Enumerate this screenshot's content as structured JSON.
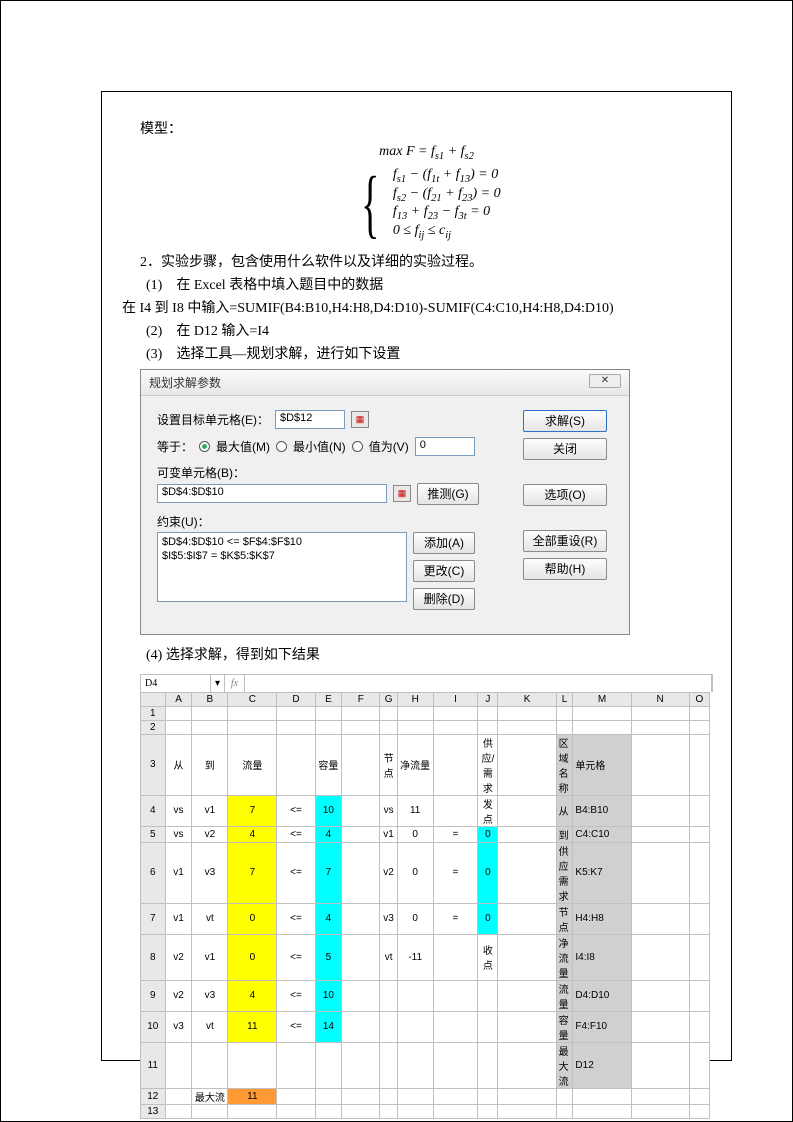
{
  "intro_label": "模型：",
  "formula_obj": "max F = f_{s1} + f_{s2}",
  "formula_lines": [
    "f_{s1} − (f_{1t} + f_{13}) = 0",
    "f_{s2} − (f_{21} + f_{23}) = 0",
    "f_{13} + f_{23} − f_{3t} = 0",
    "0 ≤ f_{ij} ≤ c_{ij}"
  ],
  "steps": {
    "title": "2．实验步骤，包含使用什么软件以及详细的实验过程。",
    "s1": "(1)　在 Excel 表格中填入题目中的数据",
    "s1b": "在 I4 到 I8 中输入=SUMIF(B4:B10,H4:H8,D4:D10)-SUMIF(C4:C10,H4:H8,D4:D10)",
    "s2": "(2)　在 D12 输入=I4",
    "s3": "(3)　选择工具—规划求解，进行如下设置",
    "s4": "(4) 选择求解，得到如下结果"
  },
  "dlg": {
    "title": "规划求解参数",
    "target_label": "设置目标单元格(E)：",
    "target_value": "$D$12",
    "equal_label": "等于：",
    "opt_max": "最大值(M)",
    "opt_min": "最小值(N)",
    "opt_val": "值为(V)",
    "val_value": "0",
    "var_label": "可变单元格(B)：",
    "var_value": "$D$4:$D$10",
    "guess": "推测(G)",
    "constr_label": "约束(U)：",
    "constraints": [
      "$D$4:$D$10 <= $F$4:$F$10",
      "$I$5:$I$7 = $K$5:$K$7"
    ],
    "btn_solve": "求解(S)",
    "btn_close": "关闭",
    "btn_options": "选项(O)",
    "btn_reset": "全部重设(R)",
    "btn_help": "帮助(H)",
    "btn_add": "添加(A)",
    "btn_change": "更改(C)",
    "btn_delete": "删除(D)"
  },
  "sheet": {
    "cellref": "D4",
    "fx": "fx",
    "cols": [
      "",
      "A",
      "B",
      "C",
      "D",
      "E",
      "F",
      "G",
      "H",
      "I",
      "J",
      "K",
      "L",
      "M",
      "N",
      "O"
    ],
    "rows": [
      {
        "n": "1",
        "c": [
          "",
          "",
          "",
          "",
          "",
          "",
          "",
          "",
          "",
          "",
          "",
          "",
          "",
          "",
          "",
          ""
        ]
      },
      {
        "n": "2",
        "c": [
          "",
          "",
          "",
          "",
          "",
          "",
          "",
          "",
          "",
          "",
          "",
          "",
          "",
          "",
          "",
          ""
        ]
      },
      {
        "n": "3",
        "c": [
          "",
          "从",
          "到",
          "流量",
          "",
          "容量",
          "",
          "节点",
          "净流量",
          "",
          "供应/需求",
          "",
          "区域名称",
          "单元格",
          "",
          ""
        ],
        "bold": true,
        "gray_cols": [
          12,
          13
        ]
      },
      {
        "n": "4",
        "c": [
          "",
          "vs",
          "v1",
          "7",
          "<=",
          "10",
          "",
          "vs",
          "11",
          "",
          "发点",
          "",
          "从",
          "B4:B10",
          "",
          ""
        ],
        "yellow_cols": [
          3
        ],
        "cyan_cols": [
          5
        ],
        "gray_cols": [
          12,
          13
        ]
      },
      {
        "n": "5",
        "c": [
          "",
          "vs",
          "v2",
          "4",
          "<=",
          "4",
          "",
          "v1",
          "0",
          "=",
          "0",
          "",
          "到",
          "C4:C10",
          "",
          ""
        ],
        "yellow_cols": [
          3
        ],
        "cyan_cols": [
          5,
          10
        ],
        "gray_cols": [
          12,
          13
        ]
      },
      {
        "n": "6",
        "c": [
          "",
          "v1",
          "v3",
          "7",
          "<=",
          "7",
          "",
          "v2",
          "0",
          "=",
          "0",
          "",
          "供应需求",
          "K5:K7",
          "",
          ""
        ],
        "yellow_cols": [
          3
        ],
        "cyan_cols": [
          5,
          10
        ],
        "gray_cols": [
          12,
          13
        ]
      },
      {
        "n": "7",
        "c": [
          "",
          "v1",
          "vt",
          "0",
          "<=",
          "4",
          "",
          "v3",
          "0",
          "=",
          "0",
          "",
          "节点",
          "H4:H8",
          "",
          ""
        ],
        "yellow_cols": [
          3
        ],
        "cyan_cols": [
          5,
          10
        ],
        "gray_cols": [
          12,
          13
        ]
      },
      {
        "n": "8",
        "c": [
          "",
          "v2",
          "v1",
          "0",
          "<=",
          "5",
          "",
          "vt",
          "-11",
          "",
          "收点",
          "",
          "净流量",
          "I4:I8",
          "",
          ""
        ],
        "yellow_cols": [
          3
        ],
        "cyan_cols": [
          5
        ],
        "gray_cols": [
          12,
          13
        ]
      },
      {
        "n": "9",
        "c": [
          "",
          "v2",
          "v3",
          "4",
          "<=",
          "10",
          "",
          "",
          "",
          "",
          "",
          "",
          "流量",
          "D4:D10",
          "",
          ""
        ],
        "yellow_cols": [
          3
        ],
        "cyan_cols": [
          5
        ],
        "gray_cols": [
          12,
          13
        ]
      },
      {
        "n": "10",
        "c": [
          "",
          "v3",
          "vt",
          "11",
          "<=",
          "14",
          "",
          "",
          "",
          "",
          "",
          "",
          "容量",
          "F4:F10",
          "",
          ""
        ],
        "yellow_cols": [
          3
        ],
        "cyan_cols": [
          5
        ],
        "gray_cols": [
          12,
          13
        ]
      },
      {
        "n": "11",
        "c": [
          "",
          "",
          "",
          "",
          "",
          "",
          "",
          "",
          "",
          "",
          "",
          "",
          "最大流",
          "D12",
          "",
          ""
        ],
        "gray_cols": [
          12,
          13
        ]
      },
      {
        "n": "12",
        "c": [
          "",
          "",
          "最大流",
          "11",
          "",
          "",
          "",
          "",
          "",
          "",
          "",
          "",
          "",
          "",
          "",
          ""
        ],
        "orange_cols": [
          3
        ]
      },
      {
        "n": "13",
        "c": [
          "",
          "",
          "",
          "",
          "",
          "",
          "",
          "",
          "",
          "",
          "",
          "",
          "",
          "",
          "",
          ""
        ]
      }
    ]
  }
}
